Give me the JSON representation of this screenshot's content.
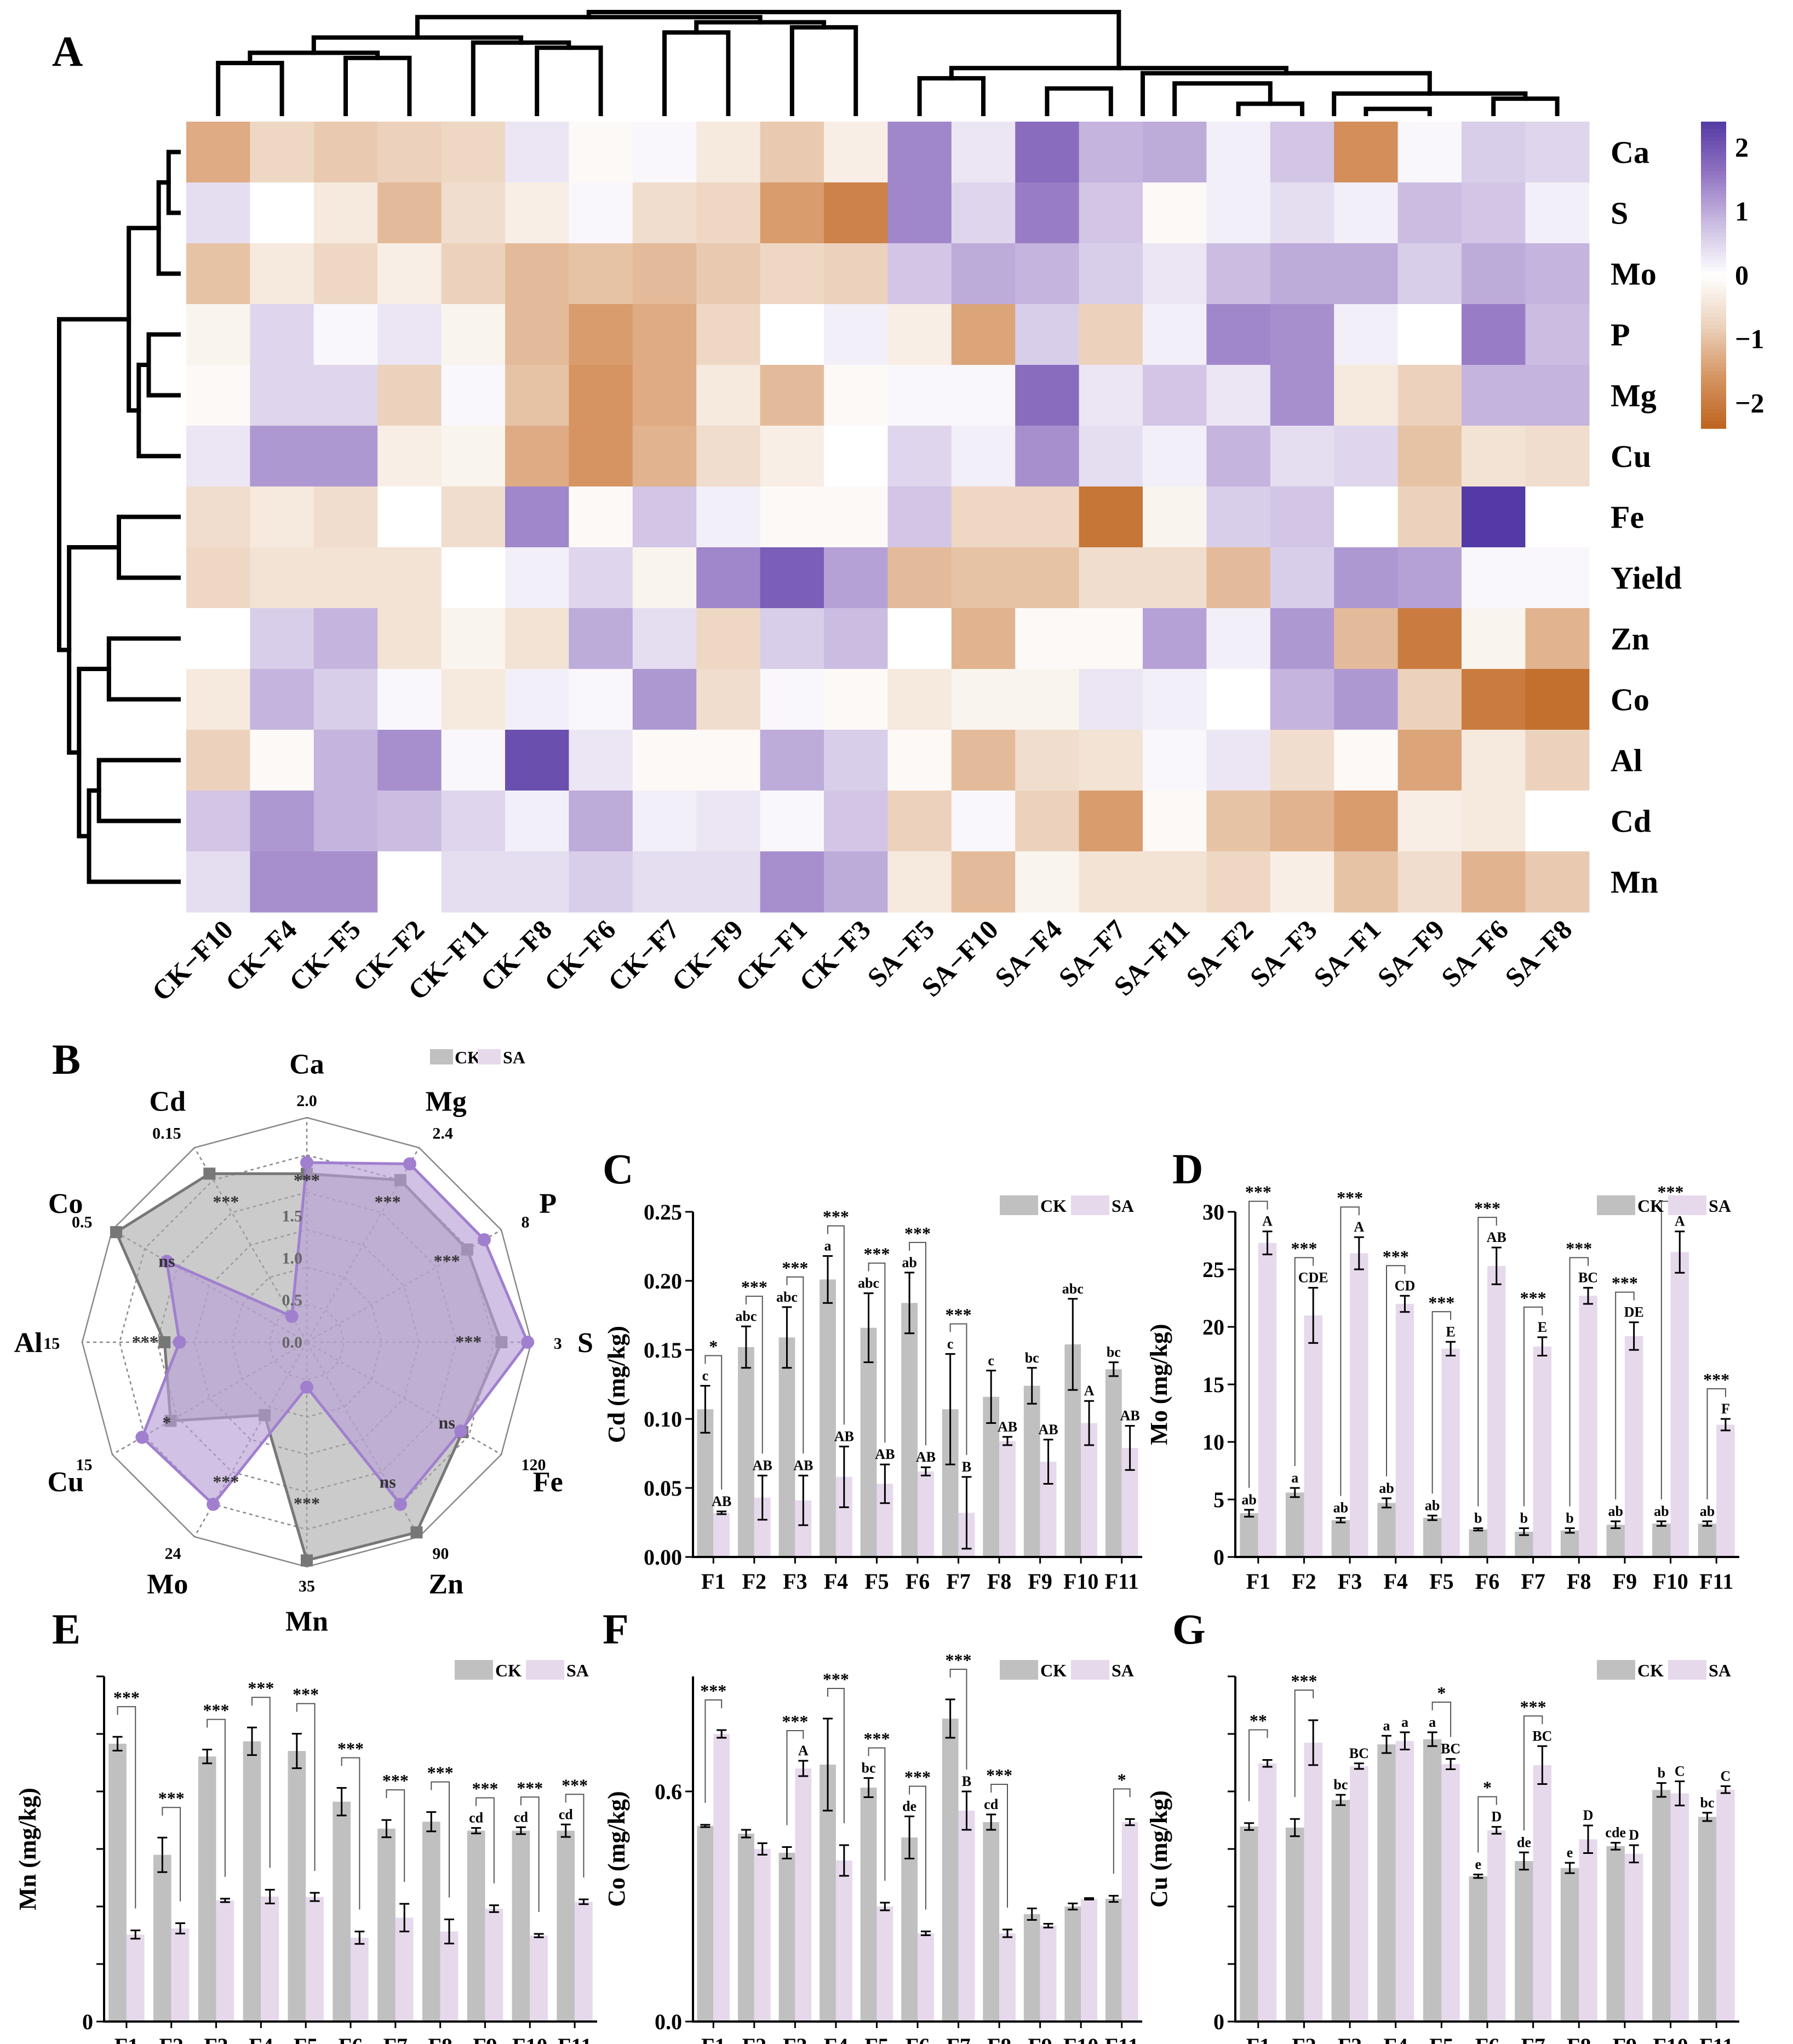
{
  "panel_labels": [
    "A",
    "B",
    "C",
    "D",
    "E",
    "F",
    "G"
  ],
  "chart_data": [
    {
      "id": "A",
      "type": "heatmap",
      "title": "",
      "columns": [
        "CK−F10",
        "CK−F4",
        "CK−F5",
        "CK−F2",
        "CK−F11",
        "CK−F8",
        "CK−F6",
        "CK−F7",
        "CK−F9",
        "CK−F1",
        "CK−F3",
        "SA−F5",
        "SA−F10",
        "SA−F4",
        "SA−F7",
        "SA−F11",
        "SA−F2",
        "SA−F3",
        "SA−F1",
        "SA−F9",
        "SA−F6",
        "SA−F8"
      ],
      "rows": [
        "Ca",
        "S",
        "Mo",
        "P",
        "Mg",
        "Cu",
        "Fe",
        "Yield",
        "Zn",
        "Co",
        "Al",
        "Cd",
        "Mn"
      ],
      "values": [
        [
          -1.3,
          -0.7,
          -0.9,
          -0.8,
          -0.7,
          0.3,
          -0.1,
          0.1,
          -0.4,
          -0.9,
          -0.3,
          1.4,
          0.3,
          1.7,
          0.9,
          1.0,
          0.2,
          0.7,
          -1.7,
          0.1,
          0.6,
          0.5
        ],
        [
          0.4,
          0.0,
          -0.4,
          -1.1,
          -0.6,
          -0.3,
          0.1,
          -0.6,
          -0.7,
          -1.5,
          -1.9,
          1.4,
          0.5,
          1.5,
          0.7,
          -0.1,
          0.2,
          0.4,
          0.2,
          0.8,
          0.7,
          0.2
        ],
        [
          -1.0,
          -0.4,
          -0.7,
          -0.3,
          -0.8,
          -1.1,
          -1.0,
          -1.1,
          -0.9,
          -0.7,
          -0.8,
          0.7,
          1.0,
          0.9,
          0.6,
          0.3,
          0.8,
          1.0,
          1.0,
          0.6,
          1.0,
          0.9
        ],
        [
          -0.2,
          0.5,
          0.1,
          0.3,
          -0.2,
          -1.1,
          -1.5,
          -1.3,
          -0.7,
          0.0,
          0.2,
          -0.3,
          -1.4,
          0.6,
          -0.8,
          0.2,
          1.4,
          1.3,
          0.2,
          0.0,
          1.5,
          0.8
        ],
        [
          -0.1,
          0.5,
          0.5,
          -0.8,
          0.1,
          -1.0,
          -1.6,
          -1.3,
          -0.4,
          -1.1,
          -0.1,
          0.1,
          0.1,
          1.7,
          0.3,
          0.7,
          0.3,
          1.3,
          -0.4,
          -0.8,
          0.9,
          0.9
        ],
        [
          0.3,
          1.2,
          1.2,
          -0.3,
          -0.2,
          -1.3,
          -1.6,
          -1.2,
          -0.6,
          -0.3,
          0.0,
          0.5,
          0.2,
          1.3,
          0.4,
          0.2,
          0.9,
          0.4,
          0.5,
          -1.0,
          -0.5,
          -0.6
        ],
        [
          -0.6,
          -0.4,
          -0.6,
          0.0,
          -0.6,
          1.4,
          -0.1,
          0.7,
          0.2,
          -0.1,
          -0.1,
          0.7,
          -0.7,
          -0.7,
          -2.1,
          -0.2,
          0.6,
          0.7,
          0.0,
          -0.8,
          2.4,
          0.0
        ],
        [
          -0.7,
          -0.5,
          -0.5,
          -0.5,
          0.0,
          0.2,
          0.5,
          -0.2,
          1.4,
          1.9,
          1.1,
          -1.1,
          -1.0,
          -1.0,
          -0.6,
          -0.6,
          -1.1,
          0.6,
          1.2,
          1.1,
          0.1,
          0.1
        ],
        [
          0.0,
          0.6,
          0.9,
          -0.5,
          -0.2,
          -0.5,
          1.0,
          0.4,
          -0.7,
          0.6,
          0.8,
          0.0,
          -1.2,
          -0.1,
          -0.1,
          1.1,
          0.2,
          1.2,
          -1.1,
          -2.0,
          -0.2,
          -1.2
        ],
        [
          -0.4,
          0.9,
          0.6,
          0.1,
          -0.4,
          0.2,
          0.1,
          1.2,
          -0.6,
          0.1,
          -0.1,
          -0.4,
          -0.2,
          -0.2,
          0.3,
          0.2,
          0.0,
          0.9,
          1.2,
          -0.8,
          -2.0,
          -2.2
        ],
        [
          -0.8,
          -0.1,
          0.9,
          1.3,
          0.1,
          2.1,
          0.3,
          -0.1,
          -0.1,
          1.0,
          0.6,
          -0.1,
          -1.1,
          -0.6,
          -0.5,
          0.1,
          0.3,
          -0.6,
          -0.1,
          -1.4,
          -0.4,
          -0.8
        ],
        [
          0.7,
          1.2,
          0.9,
          0.8,
          0.5,
          0.2,
          1.0,
          0.2,
          0.3,
          0.1,
          0.7,
          -0.8,
          0.1,
          -0.8,
          -1.5,
          -0.1,
          -1.0,
          -1.2,
          -1.5,
          -0.3,
          -0.4,
          0.0
        ],
        [
          0.4,
          1.3,
          1.3,
          0.0,
          0.4,
          0.4,
          0.6,
          0.4,
          0.4,
          1.3,
          1.0,
          -0.4,
          -1.1,
          -0.2,
          -0.5,
          -0.5,
          -0.7,
          -0.3,
          -1.0,
          -0.6,
          -1.2,
          -0.9
        ]
      ],
      "colorbar": {
        "ticks": [
          "2",
          "1",
          "0",
          "−1",
          "−2"
        ],
        "range": [
          -2.4,
          2.4
        ]
      },
      "col_dendrogram": [
        [
          19,
          20
        ],
        [
          17,
          18
        ],
        [
          21,
          22
        ],
        [
          18.5,
          21.5
        ],
        [
          14,
          15
        ],
        [
          16,
          17.5
        ],
        [
          12,
          13
        ],
        [
          15.5,
          20
        ],
        [
          12.5,
          17.75
        ],
        [
          1,
          2
        ],
        [
          3,
          4
        ],
        [
          1.5,
          3.5
        ],
        [
          6,
          7
        ],
        [
          5,
          6.5
        ],
        [
          2.5,
          5.75
        ],
        [
          8,
          9
        ],
        [
          10,
          11
        ],
        [
          8.5,
          10.5
        ],
        [
          4.125,
          9.5
        ],
        [
          6.8125,
          15.125
        ]
      ],
      "row_dendrogram": [
        [
          1,
          2
        ],
        [
          1.5,
          3
        ],
        [
          4,
          5
        ],
        [
          4.5,
          6
        ],
        [
          2.25,
          5.25
        ],
        [
          7,
          8
        ],
        [
          9,
          10
        ],
        [
          11,
          12
        ],
        [
          11.5,
          13
        ],
        [
          9.5,
          12.25
        ],
        [
          7.5,
          10.875
        ],
        [
          3.75,
          9.1875
        ]
      ]
    },
    {
      "id": "B",
      "type": "radar",
      "legend": [
        "CK",
        "SA"
      ],
      "axes": [
        "Ca",
        "Mg",
        "P",
        "S",
        "Fe",
        "Zn",
        "Mn",
        "Mo",
        "Cu",
        "Al",
        "Co",
        "Cd"
      ],
      "axis_max": [
        "2.0",
        "2.4",
        "8",
        "3",
        "120",
        "90",
        "35",
        "24",
        "15",
        "15",
        "0.5",
        "0.15"
      ],
      "ca_ticks": [
        "1.5",
        "1.0",
        "0.5",
        "0.0"
      ],
      "ck": [
        1.5,
        2.0,
        6.6,
        2.6,
        96,
        88,
        34,
        9,
        10.5,
        9.5,
        0.49,
        0.13
      ],
      "sa": [
        1.6,
        2.2,
        7.3,
        2.95,
        95,
        75,
        7,
        20,
        12.7,
        8.5,
        0.36,
        0.02
      ],
      "sig": [
        "***",
        "***",
        "***",
        "***",
        "ns",
        "ns",
        "***",
        "***",
        "*",
        "***",
        "ns",
        "***"
      ]
    },
    {
      "id": "C",
      "type": "bar",
      "ylabel": "Cd (mg/kg)",
      "ylim": [
        0,
        0.25
      ],
      "yticks": [
        "0.00",
        "0.05",
        "0.10",
        "0.15",
        "0.20",
        "0.25"
      ],
      "categories": [
        "F1",
        "F2",
        "F3",
        "F4",
        "F5",
        "F6",
        "F7",
        "F8",
        "F9",
        "F10",
        "F11"
      ],
      "legend": [
        "CK",
        "SA"
      ],
      "series": [
        {
          "name": "CK",
          "values": [
            0.107,
            0.152,
            0.159,
            0.201,
            0.166,
            0.184,
            0.107,
            0.116,
            0.124,
            0.154,
            0.136
          ],
          "errors": [
            0.017,
            0.015,
            0.022,
            0.017,
            0.025,
            0.022,
            0.04,
            0.019,
            0.013,
            0.033,
            0.005
          ],
          "letters": [
            "c",
            "abc",
            "abc",
            "a",
            "abc",
            "ab",
            "c",
            "c",
            "bc",
            "abc",
            "bc"
          ]
        },
        {
          "name": "SA",
          "values": [
            0.032,
            0.043,
            0.041,
            0.058,
            0.053,
            0.062,
            0.032,
            0.084,
            0.069,
            0.097,
            0.079
          ],
          "errors": [
            0.001,
            0.016,
            0.018,
            0.022,
            0.014,
            0.003,
            0.026,
            0.003,
            0.016,
            0.016,
            0.016
          ],
          "letters": [
            "AB",
            "AB",
            "AB",
            "AB",
            "AB",
            "AB",
            "B",
            "AB",
            "AB",
            "A",
            "AB"
          ]
        }
      ],
      "sig": [
        "*",
        "***",
        "***",
        "***",
        "***",
        "***",
        "***",
        "",
        "",
        "",
        ""
      ]
    },
    {
      "id": "D",
      "type": "bar",
      "ylabel": "Mo (mg/kg)",
      "ylim": [
        0,
        30
      ],
      "yticks": [
        "0",
        "5",
        "10",
        "15",
        "20",
        "25",
        "30"
      ],
      "categories": [
        "F1",
        "F2",
        "F3",
        "F4",
        "F5",
        "F6",
        "F7",
        "F8",
        "F9",
        "F10",
        "F11"
      ],
      "legend": [
        "CK",
        "SA"
      ],
      "series": [
        {
          "name": "CK",
          "values": [
            3.8,
            5.6,
            3.2,
            4.7,
            3.4,
            2.4,
            2.2,
            2.3,
            2.8,
            2.9,
            2.9
          ],
          "errors": [
            0.3,
            0.4,
            0.2,
            0.4,
            0.2,
            0.1,
            0.3,
            0.2,
            0.3,
            0.2,
            0.2
          ],
          "letters": [
            "ab",
            "a",
            "ab",
            "ab",
            "ab",
            "b",
            "b",
            "b",
            "ab",
            "ab",
            "ab"
          ]
        },
        {
          "name": "SA",
          "values": [
            27.3,
            21.0,
            26.4,
            22.0,
            18.1,
            25.3,
            18.3,
            22.7,
            19.2,
            26.5,
            11.5
          ],
          "errors": [
            1.0,
            2.4,
            1.4,
            0.7,
            0.6,
            1.6,
            0.8,
            0.7,
            1.2,
            1.8,
            0.5
          ],
          "letters": [
            "A",
            "CDE",
            "A",
            "CD",
            "E",
            "AB",
            "E",
            "BC",
            "DE",
            "A",
            "F"
          ]
        }
      ],
      "sig": [
        "***",
        "***",
        "***",
        "***",
        "***",
        "***",
        "***",
        "***",
        "***",
        "***",
        "***"
      ]
    },
    {
      "id": "E",
      "type": "bar",
      "ylabel": "Mn (mg/kg)",
      "ylim": [
        0,
        1
      ],
      "yticks": [
        "0"
      ],
      "categories": [
        "F1",
        "F2",
        "F3",
        "F4",
        "F5",
        "F6",
        "F7",
        "F8",
        "F9",
        "F10",
        "F11"
      ],
      "legend": [
        "CK",
        "SA"
      ],
      "series": [
        {
          "name": "CK",
          "values": [
            0.805,
            0.483,
            0.768,
            0.812,
            0.784,
            0.637,
            0.559,
            0.579,
            0.553,
            0.553,
            0.553
          ],
          "errors": [
            0.02,
            0.05,
            0.02,
            0.04,
            0.05,
            0.04,
            0.025,
            0.028,
            0.008,
            0.01,
            0.018
          ],
          "letters": [
            "",
            "",
            "",
            "",
            "",
            "",
            "",
            "",
            "cd",
            "cd",
            "cd"
          ]
        },
        {
          "name": "SA",
          "values": [
            0.252,
            0.27,
            0.351,
            0.362,
            0.361,
            0.243,
            0.301,
            0.261,
            0.327,
            0.249,
            0.347
          ],
          "errors": [
            0.012,
            0.015,
            0.005,
            0.02,
            0.012,
            0.018,
            0.04,
            0.035,
            0.01,
            0.005,
            0.007
          ],
          "letters": [
            "",
            "",
            "",
            "",
            "",
            "",
            "",
            "",
            "",
            "",
            ""
          ]
        }
      ],
      "sig": [
        "***",
        "***",
        "***",
        "***",
        "***",
        "***",
        "***",
        "***",
        "***",
        "***",
        "***"
      ]
    },
    {
      "id": "F",
      "type": "bar",
      "ylabel": "Co (mg/kg)",
      "ylim": [
        0,
        0.9
      ],
      "yticks": [
        "0.0",
        "0.6"
      ],
      "categories": [
        "F1",
        "F2",
        "F3",
        "F4",
        "F5",
        "F6",
        "F7",
        "F8",
        "F9",
        "F10",
        "F11"
      ],
      "legend": [
        "CK",
        "SA"
      ],
      "series": [
        {
          "name": "CK",
          "values": [
            0.51,
            0.49,
            0.44,
            0.67,
            0.61,
            0.48,
            0.79,
            0.52,
            0.28,
            0.3,
            0.32
          ],
          "errors": [
            0.003,
            0.01,
            0.015,
            0.12,
            0.025,
            0.055,
            0.05,
            0.02,
            0.015,
            0.008,
            0.008
          ],
          "letters": [
            "",
            "",
            "",
            "",
            "bc",
            "de",
            "",
            "cd",
            "",
            "",
            ""
          ]
        },
        {
          "name": "SA",
          "values": [
            0.75,
            0.45,
            0.66,
            0.42,
            0.3,
            0.23,
            0.55,
            0.23,
            0.25,
            0.32,
            0.52
          ],
          "errors": [
            0.01,
            0.015,
            0.02,
            0.04,
            0.01,
            0.005,
            0.05,
            0.01,
            0.005,
            0.002,
            0.008
          ],
          "letters": [
            "",
            "",
            "A",
            "",
            "",
            "",
            "B",
            "",
            "",
            "",
            ""
          ]
        }
      ],
      "sig": [
        "***",
        "",
        "***",
        "***",
        "***",
        "***",
        "***",
        "***",
        "",
        "",
        "*"
      ]
    },
    {
      "id": "G",
      "type": "bar",
      "ylabel": "Cu (mg/kg)",
      "ylim": [
        0,
        1
      ],
      "yticks": [
        "0"
      ],
      "categories": [
        "F1",
        "F2",
        "F3",
        "F4",
        "F5",
        "F6",
        "F7",
        "F8",
        "F9",
        "F10",
        "F11"
      ],
      "legend": [
        "CK",
        "SA"
      ],
      "series": [
        {
          "name": "CK",
          "values": [
            0.565,
            0.562,
            0.642,
            0.803,
            0.818,
            0.421,
            0.465,
            0.445,
            0.508,
            0.671,
            0.593
          ],
          "errors": [
            0.01,
            0.025,
            0.015,
            0.025,
            0.02,
            0.005,
            0.025,
            0.015,
            0.01,
            0.02,
            0.012
          ],
          "letters": [
            "",
            "",
            "bc",
            "a",
            "a",
            "e",
            "de",
            "e",
            "cde",
            "b",
            "bc"
          ]
        },
        {
          "name": "SA",
          "values": [
            0.748,
            0.808,
            0.74,
            0.813,
            0.746,
            0.554,
            0.743,
            0.528,
            0.486,
            0.661,
            0.672
          ],
          "errors": [
            0.01,
            0.065,
            0.008,
            0.025,
            0.015,
            0.01,
            0.055,
            0.04,
            0.025,
            0.035,
            0.01
          ],
          "letters": [
            "",
            "",
            "BC",
            "a",
            "BC",
            "D",
            "BC",
            "D",
            "D",
            "C",
            "C"
          ]
        }
      ],
      "sig": [
        "**",
        "***",
        "",
        "",
        "*",
        "*",
        "***",
        "",
        "",
        "",
        ""
      ]
    }
  ]
}
